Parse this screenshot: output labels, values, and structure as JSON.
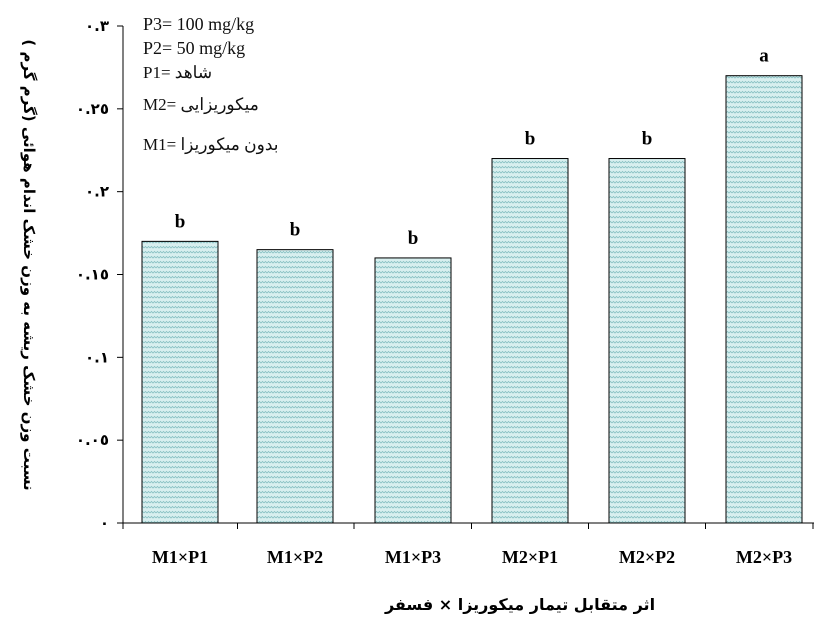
{
  "chart_data": {
    "type": "bar",
    "categories": [
      "M1×P1",
      "M1×P2",
      "M1×P3",
      "M2×P1",
      "M2×P2",
      "M2×P3"
    ],
    "values": [
      0.17,
      0.165,
      0.16,
      0.22,
      0.22,
      0.27
    ],
    "letters": [
      "b",
      "b",
      "b",
      "b",
      "b",
      "a"
    ],
    "ylim": [
      0,
      0.3
    ],
    "yticks": [
      0,
      0.05,
      0.1,
      0.15,
      0.2,
      0.25,
      0.3
    ],
    "ytick_labels": [
      "٠",
      "٠.٠٥",
      "٠.١",
      "٠.١٥",
      "٠.٢",
      "٠.٢٥",
      "٠.٣"
    ],
    "ylabel": "نسبت وزن خشک ریشه به وزن خشک اندام هوائی (گرم گرم )",
    "xlabel": "اثر متقابل تیمار میکوریزا × فسفر",
    "legend_lines": [
      "P3= 100 mg/kg",
      "P2= 50 mg/kg",
      "P1= شاهد",
      "M2= میکوریزایی",
      "M1= بدون میکوریزا"
    ],
    "bar_color": "#cdeaea",
    "bar_hatch_color": "#7fb8bc",
    "bar_edge_color": "#000000"
  }
}
